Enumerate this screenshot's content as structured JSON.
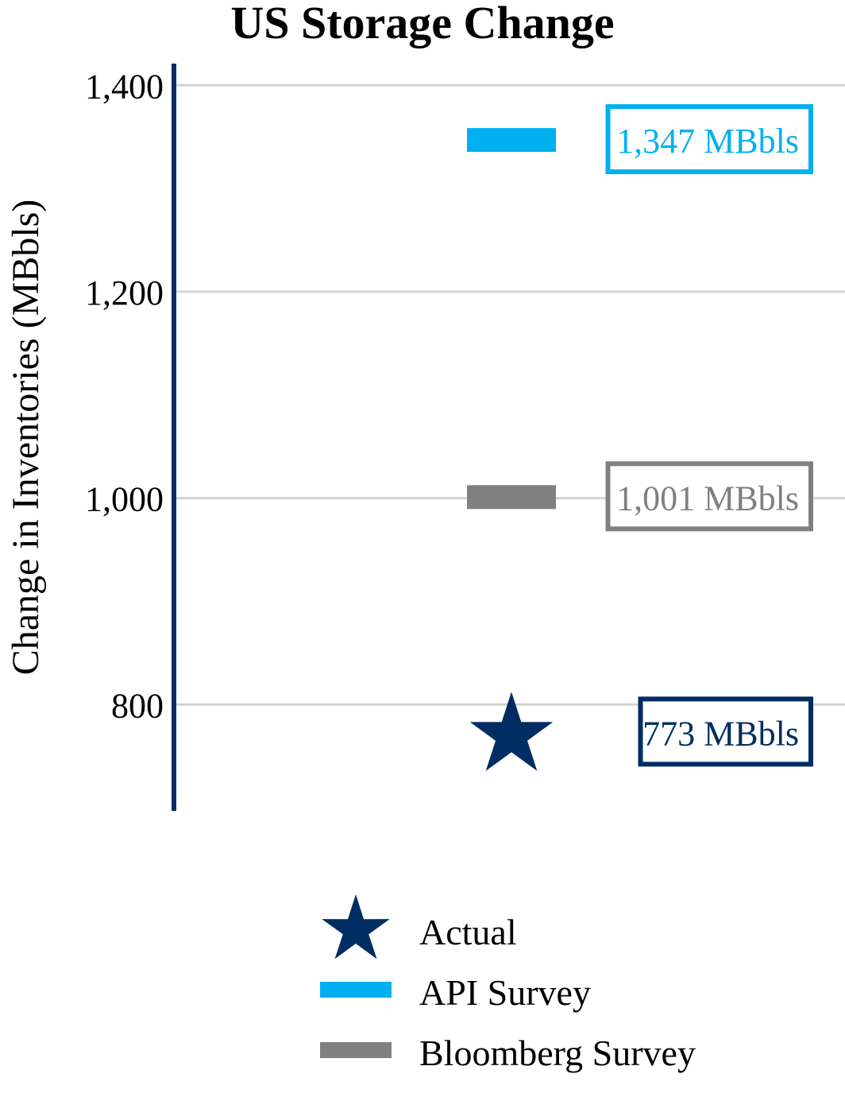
{
  "chart_data": {
    "type": "scatter",
    "title": "US Storage Change",
    "ylabel": "Change in Inventories (MBbls)",
    "xlabel": "",
    "ylim": [
      697,
      1421
    ],
    "yticks": [
      800,
      1000,
      1200,
      1400
    ],
    "ytick_labels": [
      "800",
      "1,000",
      "1,200",
      "1,400"
    ],
    "grid": true,
    "legend_position": "bottom",
    "series": [
      {
        "name": "Actual",
        "marker": "star",
        "value": 773,
        "label": "773 MBbls",
        "color": "#002D62"
      },
      {
        "name": "API Survey",
        "marker": "bar",
        "value": 1347,
        "label": "1,347 MBbls",
        "color": "#00B0F0"
      },
      {
        "name": "Bloomberg Survey",
        "marker": "bar",
        "value": 1001,
        "label": "1,001 MBbls",
        "color": "#808080"
      }
    ],
    "colors": {
      "axis": "#002D62",
      "grid": "#D3D3D3"
    }
  }
}
